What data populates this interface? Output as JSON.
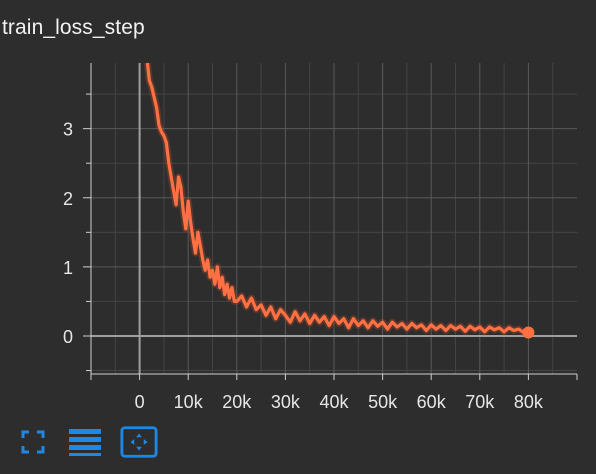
{
  "card": {
    "title": "train_loss_step"
  },
  "colors": {
    "background": "#2d2d2d",
    "series": "#ff7043",
    "grid": "#5a5a5a",
    "axis": "#9e9e9e",
    "icon": "#1e88e5"
  },
  "toolbar": {
    "icons": [
      "fullscreen-icon",
      "data-table-icon",
      "fit-domain-icon"
    ]
  },
  "chart_data": {
    "type": "line",
    "title": "train_loss_step",
    "xlabel": "",
    "ylabel": "",
    "xlim": [
      -10000,
      90000
    ],
    "ylim": [
      -0.55,
      3.95
    ],
    "x_ticks": [
      0,
      10000,
      20000,
      30000,
      40000,
      50000,
      60000,
      70000,
      80000
    ],
    "x_tick_labels": [
      "0",
      "10k",
      "20k",
      "30k",
      "40k",
      "50k",
      "60k",
      "70k",
      "80k"
    ],
    "y_ticks": [
      0,
      1,
      2,
      3
    ],
    "y_tick_labels": [
      "0",
      "1",
      "2",
      "3"
    ],
    "grid": true,
    "legend": "none",
    "series": [
      {
        "x": [
          1600,
          2000,
          2500,
          3000,
          3500,
          4000,
          4500,
          5000,
          5500,
          6000,
          6500,
          7000,
          7500,
          8000,
          8500,
          9000,
          9500,
          10000,
          10500,
          11000,
          11500,
          12000,
          12500,
          13000,
          13500,
          14000,
          14500,
          15000,
          15500,
          16000,
          16500,
          17000,
          17500,
          18000,
          18500,
          19000,
          19500,
          20000,
          21000,
          22000,
          23000,
          24000,
          25000,
          26000,
          27000,
          28000,
          29000,
          30000,
          31000,
          32000,
          33000,
          34000,
          35000,
          36000,
          37000,
          38000,
          39000,
          40000,
          41000,
          42000,
          43000,
          44000,
          45000,
          46000,
          47000,
          48000,
          49000,
          50000,
          51000,
          52000,
          53000,
          54000,
          55000,
          56000,
          57000,
          58000,
          59000,
          60000,
          61000,
          62000,
          63000,
          64000,
          65000,
          66000,
          67000,
          68000,
          69000,
          70000,
          71000,
          72000,
          73000,
          74000,
          75000,
          76000,
          77000,
          78000,
          79000,
          80000
        ],
        "y": [
          3.95,
          3.7,
          3.6,
          3.45,
          3.3,
          3.05,
          2.95,
          2.9,
          2.8,
          2.5,
          2.3,
          2.1,
          1.9,
          2.3,
          2.15,
          1.8,
          1.55,
          1.95,
          1.65,
          1.4,
          1.2,
          1.5,
          1.3,
          1.1,
          0.95,
          1.1,
          0.85,
          0.95,
          0.75,
          1.0,
          0.7,
          0.85,
          0.6,
          0.75,
          0.55,
          0.7,
          0.5,
          0.5,
          0.58,
          0.42,
          0.55,
          0.38,
          0.45,
          0.3,
          0.42,
          0.25,
          0.38,
          0.3,
          0.2,
          0.35,
          0.22,
          0.32,
          0.18,
          0.3,
          0.2,
          0.28,
          0.15,
          0.28,
          0.18,
          0.25,
          0.12,
          0.25,
          0.15,
          0.22,
          0.12,
          0.22,
          0.14,
          0.2,
          0.1,
          0.2,
          0.13,
          0.18,
          0.1,
          0.18,
          0.12,
          0.16,
          0.08,
          0.16,
          0.1,
          0.15,
          0.08,
          0.15,
          0.1,
          0.14,
          0.07,
          0.14,
          0.09,
          0.13,
          0.06,
          0.13,
          0.09,
          0.12,
          0.06,
          0.12,
          0.08,
          0.1,
          0.05,
          0.05
        ]
      }
    ]
  }
}
